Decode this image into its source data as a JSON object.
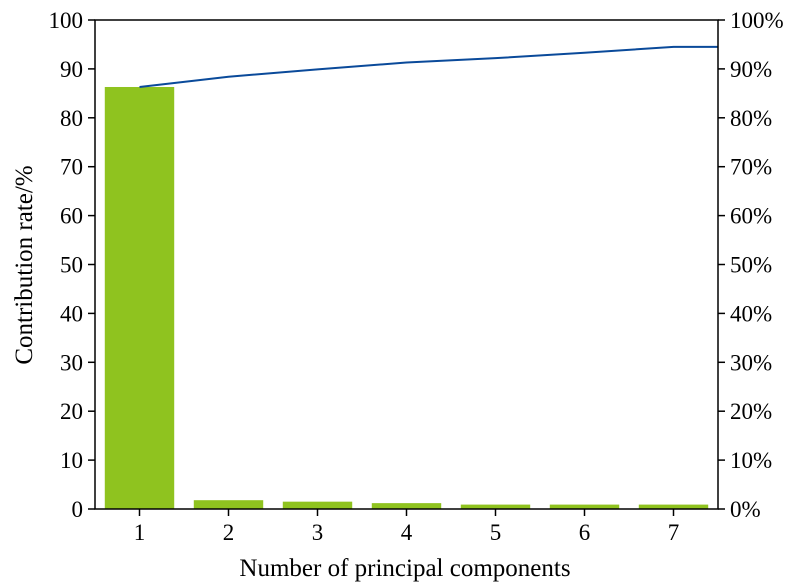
{
  "chart_data": {
    "type": "bar",
    "categories": [
      "1",
      "2",
      "3",
      "4",
      "5",
      "6",
      "7"
    ],
    "series": [
      {
        "name": "",
        "type": "bar",
        "axis": "left",
        "values": [
          86.3,
          1.8,
          1.5,
          1.2,
          0.9,
          0.9,
          0.9
        ]
      },
      {
        "name": "",
        "type": "line",
        "axis": "right",
        "values": [
          86.3,
          88.4,
          89.9,
          91.3,
          92.2,
          93.3,
          94.5
        ]
      }
    ],
    "title": "",
    "xlabel": "Number of principal components",
    "ylabel": "Contribution rate/%",
    "ylabel_right": "",
    "ylim": [
      0,
      100
    ],
    "ylim_right": [
      0,
      100
    ],
    "yticks": [
      "0",
      "10",
      "20",
      "30",
      "40",
      "50",
      "60",
      "70",
      "80",
      "90",
      "100"
    ],
    "yticks_right": [
      "0%",
      "10%",
      "20%",
      "30%",
      "40%",
      "50%",
      "60%",
      "70%",
      "80%",
      "90%",
      "100%"
    ],
    "grid": false,
    "legend": "none",
    "colors": {
      "bar": "#8fc31f",
      "line": "#0a4a9a",
      "axis": "#000000"
    }
  }
}
